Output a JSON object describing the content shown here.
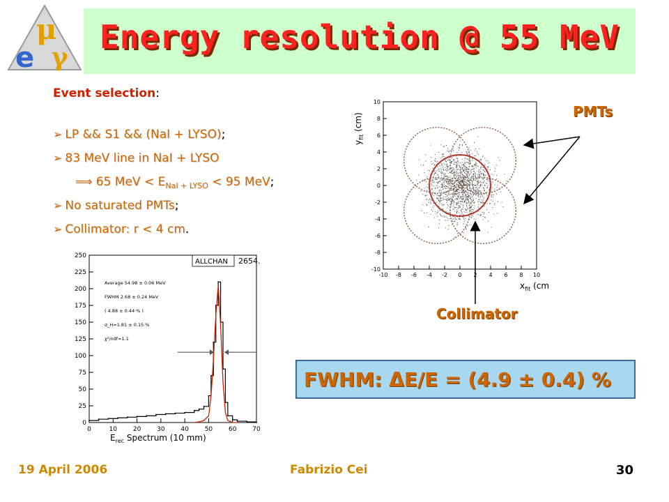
{
  "logo": {
    "mu": "μ",
    "e": "e",
    "gamma": "γ"
  },
  "title": "Energy resolution @ 55 MeV",
  "selection": {
    "heading": "Event selection",
    "colon": ":",
    "items": [
      {
        "text": "LP && S1 && (NaI + LYSO)",
        "suffix": ";"
      },
      {
        "text": "83 MeV line in NaI + LYSO",
        "suffix": ""
      },
      {
        "pre": "⟹ 65 MeV < E",
        "sub": "NaI + LYSO",
        "post": " < 95 MeV",
        "suffix": ";"
      },
      {
        "text": "No saturated PMTs",
        "suffix": ";"
      },
      {
        "text": "Collimator: r < 4 cm",
        "suffix": "."
      }
    ]
  },
  "spectrum_plot": {
    "box_label": "ALLCHAN",
    "entries": "2654.",
    "xlabel": "E",
    "xlabel_sub": "rec",
    "xlabel_rest": " Spectrum (10 mm)",
    "stats": [
      "Average 54.98 ± 0.06 MeV",
      "FWHM   2.68 ± 0.24 MeV",
      "( 4.88 ± 0.44 % )",
      "σ_H=1.81 ± 0.15 %",
      "χ²/ndf=1.1"
    ]
  },
  "position_plot": {
    "ylabel": "y",
    "ylabel_sub": "fit",
    "ylabel_unit": " (cm)",
    "xlabel": "x",
    "xlabel_sub": "fit",
    "xlabel_unit": " (cm)"
  },
  "chart_data": [
    {
      "type": "line",
      "title": "",
      "xlabel": "Erec Spectrum (10 mm)",
      "ylabel": "",
      "xlim": [
        0,
        70
      ],
      "ylim": [
        0,
        250
      ],
      "x_ticks": [
        0,
        10,
        20,
        30,
        40,
        50,
        60,
        70
      ],
      "y_ticks": [
        0,
        25,
        50,
        75,
        100,
        125,
        150,
        175,
        200,
        225,
        250
      ],
      "series": [
        {
          "x": [
            0,
            4,
            8,
            12,
            16,
            20,
            24,
            28,
            32,
            36,
            40,
            44,
            46,
            48,
            50,
            51,
            52,
            53,
            54,
            55,
            56,
            57,
            58,
            60,
            62,
            66,
            70
          ],
          "y": [
            3,
            5,
            6,
            7,
            8,
            9,
            10,
            12,
            13,
            14,
            15,
            18,
            20,
            24,
            40,
            70,
            120,
            175,
            210,
            150,
            80,
            30,
            10,
            4,
            2,
            1,
            0
          ]
        }
      ],
      "fit": {
        "x": [
          44,
          46,
          48,
          50,
          51,
          52,
          53,
          54,
          55,
          56,
          57,
          58,
          60,
          62
        ],
        "y": [
          0,
          1,
          3,
          10,
          40,
          95,
          160,
          205,
          145,
          60,
          15,
          3,
          0,
          0
        ]
      }
    },
    {
      "type": "scatter",
      "title": "",
      "xlabel": "xfit (cm)",
      "ylabel": "yfit (cm)",
      "xlim": [
        -10,
        10
      ],
      "ylim": [
        -10,
        10
      ],
      "x_ticks": [
        -10,
        -8,
        -6,
        -4,
        -2,
        0,
        2,
        4,
        6,
        8,
        10
      ],
      "y_ticks": [
        -10,
        -8,
        -6,
        -4,
        -2,
        0,
        2,
        4,
        6,
        8,
        10
      ],
      "circles": [
        {
          "cx": -3,
          "cy": 3,
          "r": 4.3
        },
        {
          "cx": 3,
          "cy": 3,
          "r": 4.3
        },
        {
          "cx": -3,
          "cy": -3,
          "r": 4.3
        },
        {
          "cx": 3,
          "cy": -3,
          "r": 4.3
        },
        {
          "cx": 0,
          "cy": 0,
          "r": 4
        }
      ]
    }
  ],
  "labels": {
    "pmts": "PMTs",
    "collimator": "Collimator"
  },
  "result": "FWHM: ΔE/E = (4.9 ± 0.4) %",
  "footer": {
    "date": "19 April 2006",
    "author": "Fabrizio Cei",
    "page": "30"
  },
  "colors": {
    "title": "#ff2020",
    "title_bg": "#ccffcc",
    "accent": "#cc6600",
    "result_bg": "#a8d8f0",
    "fit_line": "#cc2200"
  }
}
